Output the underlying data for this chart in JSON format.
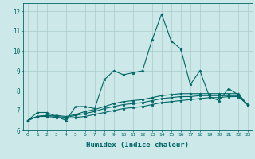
{
  "title": "",
  "xlabel": "Humidex (Indice chaleur)",
  "ylabel": "",
  "background_color": "#cce8e8",
  "grid_color": "#aacccc",
  "line_color": "#006666",
  "xlim": [
    -0.5,
    23.5
  ],
  "ylim": [
    6,
    12.4
  ],
  "yticks": [
    6,
    7,
    8,
    9,
    10,
    11,
    12
  ],
  "xticks": [
    0,
    1,
    2,
    3,
    4,
    5,
    6,
    7,
    8,
    9,
    10,
    11,
    12,
    13,
    14,
    15,
    16,
    17,
    18,
    19,
    20,
    21,
    22,
    23
  ],
  "series": [
    [
      6.5,
      6.9,
      6.9,
      6.7,
      6.5,
      7.2,
      7.2,
      7.1,
      8.55,
      9.0,
      8.8,
      8.9,
      9.0,
      10.55,
      11.85,
      10.5,
      10.1,
      8.3,
      9.0,
      7.7,
      7.5,
      8.1,
      7.8,
      7.3
    ],
    [
      6.5,
      6.7,
      6.7,
      6.65,
      6.6,
      6.65,
      6.7,
      6.8,
      6.9,
      7.0,
      7.1,
      7.15,
      7.2,
      7.3,
      7.4,
      7.45,
      7.5,
      7.55,
      7.6,
      7.65,
      7.65,
      7.7,
      7.7,
      7.3
    ],
    [
      6.5,
      6.7,
      6.75,
      6.7,
      6.65,
      6.75,
      6.85,
      6.95,
      7.1,
      7.2,
      7.3,
      7.35,
      7.4,
      7.5,
      7.6,
      7.65,
      7.7,
      7.7,
      7.75,
      7.75,
      7.75,
      7.75,
      7.75,
      7.3
    ],
    [
      6.5,
      6.7,
      6.75,
      6.75,
      6.7,
      6.8,
      6.95,
      7.05,
      7.2,
      7.35,
      7.45,
      7.5,
      7.55,
      7.65,
      7.75,
      7.8,
      7.85,
      7.85,
      7.85,
      7.85,
      7.85,
      7.85,
      7.85,
      7.3
    ]
  ]
}
